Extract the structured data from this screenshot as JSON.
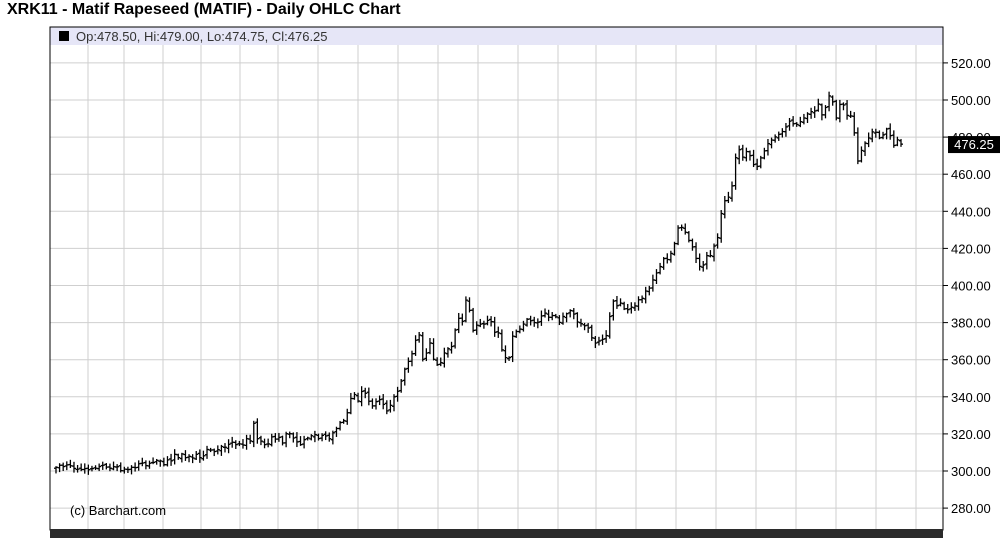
{
  "title": "XRK11 - Matif Rapeseed (MATIF) - Daily OHLC Chart",
  "legend_text": "Op:478.50, Hi:479.00, Lo:474.75, Cl:476.25",
  "watermark": "(c) Barchart.com",
  "last_price_label": "476.25",
  "colors": {
    "background": "#ffffff",
    "legend_band": "#e6e6f7",
    "grid": "#cfcfcf",
    "bars": "#000000",
    "last_price_box": "#000000",
    "bottom_strip": "#2b2b2b"
  },
  "chart_data": {
    "type": "ohlc",
    "title": "XRK11 - Matif Rapeseed (MATIF) - Daily OHLC Chart",
    "xlabel": "",
    "ylabel": "",
    "ylim": [
      270,
      530
    ],
    "y_ticks": [
      "280.00",
      "300.00",
      "320.00",
      "340.00",
      "360.00",
      "380.00",
      "400.00",
      "420.00",
      "440.00",
      "460.00",
      "480.00",
      "500.00",
      "520.00"
    ],
    "grid": true,
    "last_close": 476.25,
    "last_bar": {
      "open": 478.5,
      "high": 479.0,
      "low": 474.75,
      "close": 476.25
    },
    "approx_close_path": [
      302.0,
      303.1,
      302.4,
      303.3,
      302.8,
      301.4,
      301.0,
      300.8,
      301.3,
      300.7,
      301.3,
      301.5,
      302.4,
      303.1,
      302.1,
      301.5,
      302.3,
      302.3,
      300.2,
      301.0,
      300.8,
      302.0,
      301.8,
      303.9,
      304.3,
      302.9,
      304.2,
      304.6,
      305.7,
      305.4,
      303.4,
      306.0,
      305.5,
      309.0,
      307.2,
      309.2,
      307.2,
      307.9,
      307.0,
      309.0,
      307.2,
      308.2,
      311.6,
      311.3,
      310.5,
      311.5,
      313.2,
      312.8,
      314.4,
      315.5,
      314.2,
      314.6,
      314.0,
      317.4,
      316.2,
      325.7,
      317.4,
      316.1,
      314.2,
      314.6,
      318.4,
      317.2,
      318.1,
      315.1,
      320.1,
      320.1,
      317.8,
      315.7,
      314.2,
      316.9,
      317.8,
      319.0,
      319.6,
      317.5,
      319.2,
      318.9,
      317.4,
      320.6,
      322.9,
      326.1,
      327.1,
      331.4,
      339.1,
      341.2,
      337.7,
      342.9,
      341.9,
      337.6,
      335.1,
      337.4,
      338.5,
      335.9,
      332.4,
      335.4,
      340.0,
      343.0,
      348.5,
      354.9,
      359.1,
      363.2,
      370.5,
      373.3,
      360.2,
      363.6,
      369.0,
      360.2,
      357.3,
      358.4,
      363.6,
      365.9,
      367.1,
      376.0,
      382.3,
      380.7,
      392.1,
      386.6,
      375.8,
      378.6,
      379.2,
      379.2,
      381.2,
      380.5,
      374.8,
      374.4,
      365.3,
      361.1,
      361.1,
      372.7,
      375.2,
      376.5,
      379.2,
      381.8,
      381.0,
      380.0,
      380.2,
      383.6,
      385.1,
      382.9,
      383.8,
      383.1,
      380.1,
      383.3,
      384.8,
      386.5,
      384.6,
      380.3,
      379.4,
      378.3,
      377.1,
      371.8,
      369.0,
      370.1,
      371.0,
      373.0,
      383.3,
      391.6,
      389.1,
      390.5,
      387.4,
      387.0,
      388.3,
      389.0,
      392.3,
      393.1,
      397.0,
      398.6,
      403.0,
      406.8,
      410.2,
      414.5,
      414.0,
      417.3,
      422.6,
      431.0,
      431.3,
      428.7,
      424.3,
      420.8,
      414.6,
      410.3,
      411.1,
      416.1,
      416.1,
      421.3,
      425.8,
      438.8,
      445.7,
      447.6,
      453.7,
      468.9,
      473.2,
      469.2,
      472.2,
      470.0,
      465.2,
      464.2,
      468.8,
      472.6,
      476.5,
      478.4,
      480.1,
      481.5,
      483.0,
      485.5,
      488.6,
      487.2,
      486.8,
      488.3,
      490.3,
      492.5,
      493.7,
      494.1,
      497.8,
      492.0,
      496.0,
      502.2,
      499.0,
      490.3,
      497.6,
      497.3,
      491.7,
      491.4,
      482.3,
      467.1,
      472.8,
      476.7,
      479.5,
      482.8,
      482.6,
      479.6,
      481.2,
      484.4,
      480.8,
      475.5,
      478.5,
      476.2
    ]
  }
}
